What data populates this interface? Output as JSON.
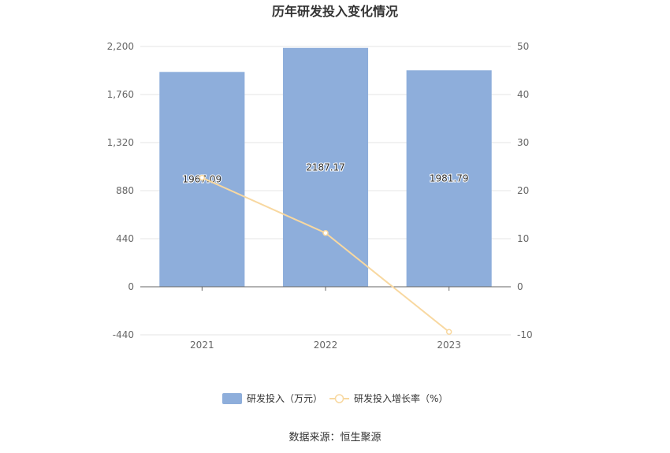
{
  "chart_data": {
    "type": "bar",
    "title": "历年研发投入变化情况",
    "categories": [
      "2021",
      "2022",
      "2023"
    ],
    "series": [
      {
        "name": "研发投入（万元）",
        "type": "bar",
        "axis": "left",
        "values": [
          1967.09,
          2187.17,
          1981.79
        ],
        "labels": [
          "1967.09",
          "2187.17",
          "1981.79"
        ],
        "color": "#8eaedb"
      },
      {
        "name": "研发投入增长率（%）",
        "type": "line",
        "axis": "right",
        "values": [
          22.7,
          11.19,
          -9.39
        ],
        "color": "#f8d8a0"
      }
    ],
    "y_left": {
      "min": -440,
      "max": 2200,
      "ticks": [
        -440,
        0,
        440,
        880,
        1320,
        1760,
        2200
      ],
      "tick_labels": [
        "-440",
        "0",
        "440",
        "880",
        "1,320",
        "1,760",
        "2,200"
      ]
    },
    "y_right": {
      "min": -10,
      "max": 50,
      "ticks": [
        -10,
        0,
        10,
        20,
        30,
        40,
        50
      ],
      "tick_labels": [
        "-10",
        "0",
        "10",
        "20",
        "30",
        "40",
        "50"
      ]
    },
    "grid": true,
    "legend_position": "bottom"
  },
  "source": "数据来源：恒生聚源",
  "colors": {
    "grid": "#e6e6e6",
    "axis": "#666666"
  }
}
